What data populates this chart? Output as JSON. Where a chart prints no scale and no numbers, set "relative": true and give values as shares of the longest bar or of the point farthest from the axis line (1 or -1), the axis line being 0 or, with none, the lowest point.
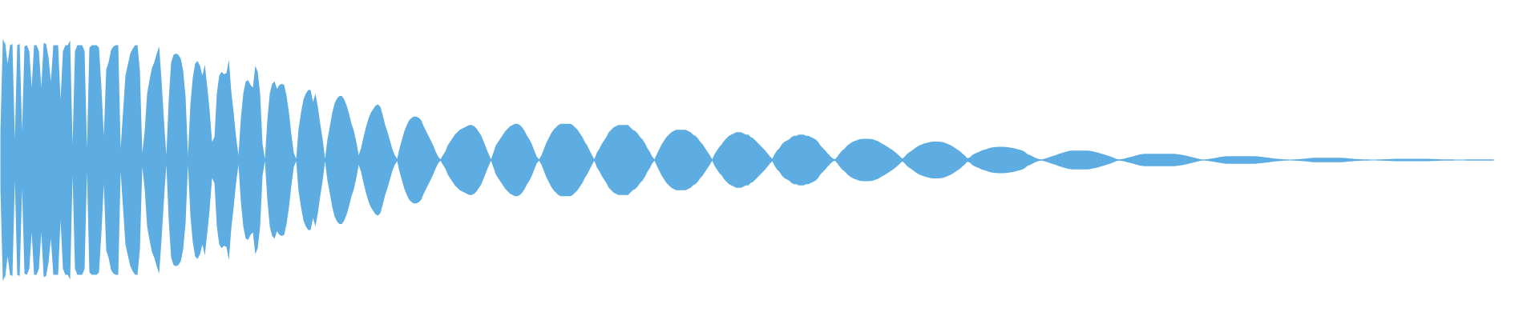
{
  "chart_data": {
    "type": "area",
    "relative": true,
    "categories": [
      null,
      null,
      null,
      null,
      null,
      null,
      null,
      null,
      null,
      null,
      null,
      null,
      null,
      null,
      null,
      null,
      null,
      null,
      null,
      null,
      null,
      null,
      null,
      null,
      null,
      null,
      null,
      null,
      null,
      null,
      null,
      null,
      null,
      null,
      null,
      null,
      null,
      null,
      null,
      null,
      null,
      null,
      null,
      null,
      null,
      null,
      null,
      null,
      null,
      null,
      null,
      null,
      null,
      null,
      null,
      null,
      null,
      null,
      null,
      null,
      null,
      null,
      null,
      null,
      null,
      null,
      null,
      null,
      null,
      null,
      null,
      null,
      null,
      null,
      null,
      null,
      null,
      null,
      null,
      null,
      null,
      null,
      null,
      null,
      null,
      null,
      null,
      null,
      null,
      null,
      null,
      null,
      null,
      null,
      null,
      null,
      null,
      null,
      null,
      null,
      null,
      null,
      null,
      null,
      null,
      null,
      null,
      null,
      null,
      null,
      null,
      null,
      null,
      null,
      null,
      null,
      null,
      null,
      null,
      null,
      null,
      null,
      null,
      null,
      null,
      null,
      null,
      null,
      null,
      null,
      null,
      null,
      null,
      null,
      null,
      null,
      null,
      null,
      null,
      null,
      null,
      null,
      null,
      null,
      null,
      null,
      null,
      null,
      null,
      null,
      null,
      null,
      null,
      null,
      null,
      null,
      null,
      null,
      null,
      null,
      null,
      null,
      null,
      null,
      null,
      null,
      null,
      null,
      null,
      null,
      null,
      null,
      null,
      null,
      null,
      null,
      null,
      null,
      null,
      null,
      null,
      null,
      null,
      null,
      null,
      null,
      null,
      null,
      null,
      null,
      null,
      null,
      null,
      null,
      null,
      null,
      null,
      null,
      null,
      null,
      null,
      null,
      null,
      null,
      null,
      null,
      null,
      null,
      null,
      null,
      null,
      null,
      null,
      null,
      null,
      null,
      null,
      null,
      null,
      null,
      null,
      null,
      null,
      null,
      null,
      null,
      null,
      null,
      null,
      null,
      null,
      null,
      null,
      null,
      null,
      null,
      null,
      null,
      null,
      null,
      null,
      null,
      null,
      null,
      null,
      null,
      null,
      null,
      null,
      null,
      null,
      null,
      null,
      null,
      null,
      null,
      null,
      null,
      null,
      null,
      null,
      null,
      null,
      null,
      null,
      null,
      null,
      null,
      null,
      null,
      null,
      null,
      null,
      null,
      null,
      null,
      null,
      null,
      null,
      null,
      null,
      null,
      null,
      null,
      null,
      null,
      null,
      null,
      null,
      null,
      null,
      null,
      null,
      null,
      null,
      null,
      null,
      null,
      null,
      null,
      null,
      null,
      null,
      null,
      null,
      null,
      null,
      null,
      null,
      null,
      null,
      null,
      null,
      null,
      null,
      null,
      null,
      null,
      null,
      null,
      null,
      null,
      null,
      null,
      null,
      null,
      null,
      null,
      null,
      null,
      null,
      null,
      null,
      null,
      null,
      null,
      null,
      null,
      null,
      null,
      null,
      null,
      null,
      null,
      null,
      null,
      null,
      null,
      null,
      null,
      null,
      null,
      null,
      null,
      null,
      null,
      null,
      null,
      null,
      null,
      null,
      null,
      null,
      null,
      null,
      null,
      null,
      null,
      null,
      null,
      null,
      null,
      null,
      null,
      null,
      null,
      null,
      null,
      null,
      null,
      null,
      null,
      null,
      null,
      null,
      null,
      null,
      null,
      null,
      null,
      null,
      null,
      null,
      null,
      null,
      null,
      null,
      null,
      null,
      null,
      null,
      null,
      null,
      null,
      null,
      null,
      null,
      null,
      null,
      null,
      null,
      null,
      null,
      null,
      null,
      null,
      null,
      null,
      null,
      null,
      null,
      null,
      null,
      null,
      null,
      null,
      null,
      null,
      null,
      null,
      null,
      null,
      null,
      null,
      null,
      null,
      null,
      null,
      null,
      null,
      null,
      null,
      null,
      null,
      null,
      null,
      null,
      null,
      null,
      null,
      null,
      null,
      null,
      null,
      null,
      null,
      null,
      null,
      null,
      null,
      null,
      null,
      null,
      null,
      null,
      null,
      null,
      null,
      null,
      null,
      null,
      null,
      null,
      null,
      null,
      null,
      null,
      null,
      null,
      null,
      null,
      null,
      null,
      null,
      null,
      null,
      null,
      null,
      null,
      null,
      null,
      null,
      null,
      null,
      null,
      null,
      null,
      null,
      null,
      null,
      null,
      null,
      null,
      null,
      null,
      null,
      null,
      null,
      null,
      null,
      null,
      null,
      null,
      null,
      null,
      null,
      null,
      null,
      null,
      null,
      null,
      null,
      null,
      null,
      null,
      null,
      null,
      null,
      null,
      null,
      null,
      null,
      null,
      null,
      null,
      null,
      null,
      null,
      null,
      null,
      null,
      null,
      null,
      null,
      null,
      null,
      null,
      null,
      null,
      null,
      null,
      null,
      null,
      null,
      null,
      null,
      null,
      null,
      null,
      null,
      null,
      null,
      null,
      null,
      null,
      null,
      null,
      null,
      null,
      null,
      null,
      null,
      null,
      null,
      null,
      null,
      null,
      null,
      null,
      null,
      null,
      null,
      null,
      null,
      null,
      null,
      null,
      null,
      null,
      null,
      null,
      null,
      null,
      null,
      null,
      null,
      null,
      null,
      null,
      null,
      null,
      null,
      null,
      null,
      null,
      null,
      null,
      null,
      null,
      null,
      null,
      null,
      null,
      null,
      null,
      null,
      null,
      null,
      null,
      null,
      null,
      null
    ],
    "ref_lines": [
      {
        "axis": "y",
        "value": 0,
        "color": "#5dade2"
      }
    ],
    "series": [
      {
        "color": "#5dade2",
        "values": [
          0.24,
          1.0,
          0.96,
          0.8,
          0.95,
          0.96,
          0.17,
          0.95,
          0.96,
          0.24,
          0.94,
          0.95,
          0.9,
          0.6,
          0.95,
          0.95,
          0.9,
          0.6,
          0.97,
          0.96,
          0.85,
          0.65,
          0.95,
          0.95,
          0.95,
          0.5,
          0.9,
          0.95,
          0.95,
          0.99,
          0.13,
          0.9,
          0.95,
          0.95,
          0.95,
          0.9,
          0.1,
          0.93,
          0.95,
          0.95,
          0.95,
          0.93,
          0.6,
          0.2,
          0.75,
          0.81,
          0.91,
          0.94,
          0.95,
          0.95,
          0.1,
          0.4,
          0.7,
          0.79,
          0.88,
          0.92,
          0.95,
          0.95,
          0.74,
          0.06,
          0.24,
          0.55,
          0.66,
          0.76,
          0.81,
          0.88,
          0.94,
          0.66,
          0.33,
          0.04,
          0.5,
          0.81,
          0.87,
          0.88,
          0.87,
          0.84,
          0.74,
          0.52,
          0.04,
          0.46,
          0.68,
          0.8,
          0.82,
          0.78,
          0.7,
          0.79,
          0.61,
          0.41,
          0.15,
          0.19,
          0.55,
          0.7,
          0.73,
          0.71,
          0.72,
          0.83,
          0.57,
          0.39,
          0.19,
          0.04,
          0.35,
          0.55,
          0.65,
          0.66,
          0.62,
          0.6,
          0.78,
          0.73,
          0.55,
          0.13,
          0.01,
          0.33,
          0.55,
          0.63,
          0.65,
          0.59,
          0.62,
          0.63,
          0.62,
          0.53,
          0.39,
          0.21,
          0.06,
          0.01,
          0.26,
          0.39,
          0.5,
          0.55,
          0.58,
          0.58,
          0.48,
          0.55,
          0.44,
          0.3,
          0.17,
          0.01,
          0.17,
          0.28,
          0.39,
          0.47,
          0.51,
          0.53,
          0.53,
          0.5,
          0.45,
          0.38,
          0.3,
          0.24,
          0.15,
          0.04,
          0.1,
          0.19,
          0.27,
          0.34,
          0.39,
          0.42,
          0.45,
          0.46,
          0.44,
          0.37,
          0.29,
          0.23,
          0.16,
          0.09,
          0.04,
          0.01,
          0.1,
          0.17,
          0.24,
          0.29,
          0.33,
          0.35,
          0.36,
          0.36,
          0.35,
          0.33,
          0.28,
          0.24,
          0.2,
          0.16,
          0.12,
          0.07,
          0.03,
          0.005,
          0.04,
          0.07,
          0.12,
          0.15,
          0.18,
          0.21,
          0.23,
          0.25,
          0.26,
          0.27,
          0.28,
          0.29,
          0.29,
          0.28,
          0.26,
          0.23,
          0.2,
          0.15,
          0.1,
          0.05,
          0.005,
          0.06,
          0.12,
          0.15,
          0.18,
          0.21,
          0.24,
          0.26,
          0.28,
          0.29,
          0.3,
          0.3,
          0.29,
          0.27,
          0.24,
          0.2,
          0.17,
          0.13,
          0.08,
          0.03,
          0.005,
          0.04,
          0.09,
          0.14,
          0.18,
          0.22,
          0.25,
          0.27,
          0.29,
          0.3,
          0.3,
          0.3,
          0.3,
          0.3,
          0.29,
          0.27,
          0.25,
          0.22,
          0.19,
          0.15,
          0.12,
          0.08,
          0.04,
          0.005,
          0.06,
          0.09,
          0.13,
          0.16,
          0.19,
          0.23,
          0.25,
          0.27,
          0.28,
          0.29,
          0.29,
          0.29,
          0.29,
          0.29,
          0.27,
          0.25,
          0.24,
          0.22,
          0.19,
          0.17,
          0.14,
          0.1,
          0.07,
          0.03,
          0.005,
          0.05,
          0.09,
          0.13,
          0.16,
          0.19,
          0.21,
          0.23,
          0.24,
          0.25,
          0.25,
          0.25,
          0.25,
          0.25,
          0.24,
          0.23,
          0.21,
          0.2,
          0.18,
          0.15,
          0.13,
          0.1,
          0.07,
          0.04,
          0.005,
          0.05,
          0.08,
          0.11,
          0.13,
          0.16,
          0.18,
          0.2,
          0.21,
          0.22,
          0.23,
          0.23,
          0.23,
          0.22,
          0.21,
          0.21,
          0.19,
          0.18,
          0.16,
          0.14,
          0.12,
          0.1,
          0.08,
          0.055,
          0.03,
          0.01,
          0.05,
          0.08,
          0.1,
          0.13,
          0.15,
          0.16,
          0.17,
          0.19,
          0.2,
          0.2,
          0.21,
          0.21,
          0.21,
          0.2,
          0.2,
          0.19,
          0.18,
          0.17,
          0.15,
          0.12,
          0.1,
          0.08,
          0.055,
          0.033,
          0.015,
          0.005,
          0.027,
          0.055,
          0.078,
          0.093,
          0.115,
          0.132,
          0.146,
          0.155,
          0.163,
          0.17,
          0.174,
          0.176,
          0.176,
          0.176,
          0.174,
          0.17,
          0.163,
          0.155,
          0.143,
          0.132,
          0.121,
          0.108,
          0.095,
          0.082,
          0.066,
          0.049,
          0.031,
          0.011,
          0.027,
          0.049,
          0.064,
          0.078,
          0.093,
          0.108,
          0.119,
          0.128,
          0.135,
          0.141,
          0.146,
          0.15,
          0.152,
          0.152,
          0.152,
          0.15,
          0.148,
          0.141,
          0.132,
          0.124,
          0.113,
          0.1,
          0.086,
          0.073,
          0.055,
          0.038,
          0.015,
          0.02,
          0.038,
          0.051,
          0.06,
          0.068,
          0.078,
          0.084,
          0.09,
          0.097,
          0.102,
          0.106,
          0.108,
          0.11,
          0.11,
          0.11,
          0.108,
          0.106,
          0.102,
          0.1,
          0.095,
          0.09,
          0.084,
          0.078,
          0.068,
          0.049,
          0.042,
          0.033,
          0.022,
          0.013,
          0.007,
          0.003,
          0.01,
          0.015,
          0.022,
          0.03,
          0.035,
          0.042,
          0.05,
          0.056,
          0.062,
          0.068,
          0.073,
          0.077,
          0.078,
          0.078,
          0.078,
          0.078,
          0.078,
          0.078,
          0.078,
          0.076,
          0.072,
          0.068,
          0.063,
          0.058,
          0.052,
          0.046,
          0.04,
          0.033,
          0.026,
          0.018,
          0.01,
          0.003,
          0.006,
          0.01,
          0.015,
          0.02,
          0.025,
          0.03,
          0.036,
          0.041,
          0.046,
          0.05,
          0.052,
          0.052,
          0.052,
          0.052,
          0.052,
          0.052,
          0.052,
          0.052,
          0.052,
          0.052,
          0.052,
          0.052,
          0.052,
          0.05,
          0.047,
          0.044,
          0.04,
          0.036,
          0.031,
          0.026,
          0.021,
          0.016,
          0.011,
          0.006,
          0.002,
          0.004,
          0.007,
          0.01,
          0.013,
          0.017,
          0.02,
          0.024,
          0.027,
          0.03,
          0.031,
          0.031,
          0.031,
          0.031,
          0.031,
          0.031,
          0.031,
          0.031,
          0.031,
          0.031,
          0.031,
          0.031,
          0.031,
          0.029,
          0.027,
          0.025,
          0.022,
          0.02,
          0.017,
          0.015,
          0.012,
          0.01,
          0.008,
          0.006,
          0.004,
          0.003,
          0,
          0.002,
          0.004,
          0.005,
          0.006,
          0.008,
          0.01,
          0.012,
          0.014,
          0.016,
          0.018,
          0.018,
          0.018,
          0.018,
          0.018,
          0.018,
          0.018,
          0.018,
          0.018,
          0.018,
          0.018,
          0.018,
          0.018,
          0.016,
          0.014,
          0.012,
          0.011,
          0.009,
          0.008,
          0.006,
          0.005,
          0.004,
          0.003,
          0.003,
          0,
          0,
          0,
          0.003,
          0.004,
          0.005,
          0.006,
          0.007,
          0.008,
          0.009,
          0.01,
          0.01,
          0.01,
          0.01,
          0.01,
          0.01,
          0.01,
          0.01,
          0.01,
          0.01,
          0.01,
          0.01,
          0.01,
          0.01,
          0.01,
          0.009,
          0.008,
          0.007,
          0.006,
          0.005,
          0.004,
          0.004,
          0.003,
          0.003,
          0.003,
          0,
          0,
          0,
          0,
          0,
          0.004,
          0.004,
          0.004,
          0.004,
          0.004,
          0.004,
          0.004,
          0.004,
          0.004,
          0.004,
          0.004,
          0.004
        ]
      },
      {
        "color": "#5dade2",
        "values": [
          -0.24,
          -1.0,
          -0.96,
          -0.8,
          -0.95,
          -0.96,
          -0.17,
          -0.95,
          -0.96,
          -0.24,
          -0.94,
          -0.95,
          -0.9,
          -0.6,
          -0.95,
          -0.95,
          -0.9,
          -0.6,
          -0.97,
          -0.96,
          -0.85,
          -0.65,
          -0.95,
          -0.95,
          -0.95,
          -0.5,
          -0.9,
          -0.95,
          -0.95,
          -0.99,
          -0.13,
          -0.9,
          -0.95,
          -0.95,
          -0.95,
          -0.9,
          -0.1,
          -0.93,
          -0.95,
          -0.95,
          -0.95,
          -0.93,
          -0.6,
          -0.2,
          -0.75,
          -0.81,
          -0.91,
          -0.94,
          -0.95,
          -0.95,
          -0.1,
          -0.4,
          -0.7,
          -0.79,
          -0.88,
          -0.92,
          -0.95,
          -0.95,
          -0.74,
          -0.06,
          -0.24,
          -0.55,
          -0.66,
          -0.76,
          -0.81,
          -0.88,
          -0.94,
          -0.66,
          -0.33,
          -0.04,
          -0.5,
          -0.81,
          -0.87,
          -0.88,
          -0.87,
          -0.84,
          -0.74,
          -0.52,
          -0.04,
          -0.46,
          -0.68,
          -0.8,
          -0.82,
          -0.78,
          -0.7,
          -0.79,
          -0.61,
          -0.41,
          -0.15,
          -0.19,
          -0.55,
          -0.7,
          -0.73,
          -0.71,
          -0.72,
          -0.83,
          -0.57,
          -0.39,
          -0.19,
          -0.04,
          -0.35,
          -0.55,
          -0.65,
          -0.66,
          -0.62,
          -0.6,
          -0.78,
          -0.73,
          -0.55,
          -0.13,
          -0.01,
          -0.33,
          -0.55,
          -0.63,
          -0.65,
          -0.59,
          -0.62,
          -0.63,
          -0.62,
          -0.53,
          -0.39,
          -0.21,
          -0.06,
          -0.01,
          -0.26,
          -0.39,
          -0.5,
          -0.55,
          -0.58,
          -0.58,
          -0.48,
          -0.55,
          -0.44,
          -0.3,
          -0.17,
          -0.01,
          -0.17,
          -0.28,
          -0.39,
          -0.47,
          -0.51,
          -0.53,
          -0.53,
          -0.5,
          -0.45,
          -0.38,
          -0.3,
          -0.24,
          -0.15,
          -0.04,
          -0.1,
          -0.19,
          -0.27,
          -0.34,
          -0.39,
          -0.42,
          -0.45,
          -0.46,
          -0.44,
          -0.37,
          -0.29,
          -0.23,
          -0.16,
          -0.09,
          -0.04,
          -0.01,
          -0.1,
          -0.17,
          -0.24,
          -0.29,
          -0.33,
          -0.35,
          -0.36,
          -0.36,
          -0.35,
          -0.33,
          -0.28,
          -0.24,
          -0.2,
          -0.16,
          -0.12,
          -0.07,
          -0.03,
          -0.005,
          -0.04,
          -0.07,
          -0.12,
          -0.15,
          -0.18,
          -0.21,
          -0.23,
          -0.25,
          -0.26,
          -0.27,
          -0.28,
          -0.29,
          -0.29,
          -0.28,
          -0.26,
          -0.23,
          -0.2,
          -0.15,
          -0.1,
          -0.05,
          -0.005,
          -0.06,
          -0.12,
          -0.15,
          -0.18,
          -0.21,
          -0.24,
          -0.26,
          -0.28,
          -0.29,
          -0.3,
          -0.3,
          -0.29,
          -0.27,
          -0.24,
          -0.2,
          -0.17,
          -0.13,
          -0.08,
          -0.03,
          -0.005,
          -0.04,
          -0.09,
          -0.14,
          -0.18,
          -0.22,
          -0.25,
          -0.27,
          -0.29,
          -0.3,
          -0.3,
          -0.3,
          -0.3,
          -0.3,
          -0.29,
          -0.27,
          -0.25,
          -0.22,
          -0.19,
          -0.15,
          -0.12,
          -0.08,
          -0.04,
          -0.005,
          -0.06,
          -0.09,
          -0.13,
          -0.16,
          -0.19,
          -0.23,
          -0.25,
          -0.27,
          -0.28,
          -0.29,
          -0.29,
          -0.29,
          -0.29,
          -0.29,
          -0.27,
          -0.25,
          -0.24,
          -0.22,
          -0.19,
          -0.17,
          -0.14,
          -0.1,
          -0.07,
          -0.03,
          -0.005,
          -0.05,
          -0.09,
          -0.13,
          -0.16,
          -0.19,
          -0.21,
          -0.23,
          -0.24,
          -0.25,
          -0.25,
          -0.25,
          -0.25,
          -0.25,
          -0.24,
          -0.23,
          -0.21,
          -0.2,
          -0.18,
          -0.15,
          -0.13,
          -0.1,
          -0.07,
          -0.04,
          -0.005,
          -0.05,
          -0.08,
          -0.11,
          -0.13,
          -0.16,
          -0.18,
          -0.2,
          -0.21,
          -0.22,
          -0.23,
          -0.23,
          -0.23,
          -0.22,
          -0.21,
          -0.21,
          -0.19,
          -0.18,
          -0.16,
          -0.14,
          -0.12,
          -0.1,
          -0.08,
          -0.055,
          -0.03,
          -0.01,
          -0.05,
          -0.08,
          -0.1,
          -0.13,
          -0.15,
          -0.16,
          -0.17,
          -0.19,
          -0.2,
          -0.2,
          -0.21,
          -0.21,
          -0.21,
          -0.2,
          -0.2,
          -0.19,
          -0.18,
          -0.17,
          -0.15,
          -0.12,
          -0.1,
          -0.08,
          -0.055,
          -0.033,
          -0.015,
          -0.005,
          -0.027,
          -0.055,
          -0.078,
          -0.093,
          -0.115,
          -0.132,
          -0.146,
          -0.155,
          -0.163,
          -0.17,
          -0.174,
          -0.176,
          -0.176,
          -0.176,
          -0.174,
          -0.17,
          -0.163,
          -0.155,
          -0.143,
          -0.132,
          -0.121,
          -0.108,
          -0.095,
          -0.082,
          -0.066,
          -0.049,
          -0.031,
          -0.011,
          -0.027,
          -0.049,
          -0.064,
          -0.078,
          -0.093,
          -0.108,
          -0.119,
          -0.128,
          -0.135,
          -0.141,
          -0.146,
          -0.15,
          -0.152,
          -0.152,
          -0.152,
          -0.15,
          -0.148,
          -0.141,
          -0.132,
          -0.124,
          -0.113,
          -0.1,
          -0.086,
          -0.073,
          -0.055,
          -0.038,
          -0.015,
          -0.02,
          -0.038,
          -0.051,
          -0.06,
          -0.068,
          -0.078,
          -0.084,
          -0.09,
          -0.097,
          -0.102,
          -0.106,
          -0.108,
          -0.11,
          -0.11,
          -0.11,
          -0.108,
          -0.106,
          -0.102,
          -0.1,
          -0.095,
          -0.09,
          -0.084,
          -0.078,
          -0.068,
          -0.049,
          -0.042,
          -0.033,
          -0.022,
          -0.013,
          -0.007,
          -0.003,
          -0.01,
          -0.015,
          -0.022,
          -0.03,
          -0.035,
          -0.042,
          -0.05,
          -0.056,
          -0.062,
          -0.068,
          -0.073,
          -0.077,
          -0.078,
          -0.078,
          -0.078,
          -0.078,
          -0.078,
          -0.078,
          -0.078,
          -0.076,
          -0.072,
          -0.068,
          -0.063,
          -0.058,
          -0.052,
          -0.046,
          -0.04,
          -0.033,
          -0.026,
          -0.018,
          -0.01,
          -0.003,
          -0.006,
          -0.01,
          -0.015,
          -0.02,
          -0.025,
          -0.03,
          -0.036,
          -0.041,
          -0.046,
          -0.05,
          -0.052,
          -0.052,
          -0.052,
          -0.052,
          -0.052,
          -0.052,
          -0.052,
          -0.052,
          -0.052,
          -0.052,
          -0.052,
          -0.052,
          -0.052,
          -0.05,
          -0.047,
          -0.044,
          -0.04,
          -0.036,
          -0.031,
          -0.026,
          -0.021,
          -0.016,
          -0.011,
          -0.006,
          -0.002,
          -0.004,
          -0.007,
          -0.01,
          -0.013,
          -0.017,
          -0.02,
          -0.024,
          -0.027,
          -0.03,
          -0.031,
          -0.031,
          -0.031,
          -0.031,
          -0.031,
          -0.031,
          -0.031,
          -0.031,
          -0.031,
          -0.031,
          -0.031,
          -0.031,
          -0.031,
          -0.029,
          -0.027,
          -0.025,
          -0.022,
          -0.02,
          -0.017,
          -0.015,
          -0.012,
          -0.01,
          -0.008,
          -0.006,
          -0.004,
          -0.003,
          0,
          -0.002,
          -0.004,
          -0.005,
          -0.006,
          -0.008,
          -0.01,
          -0.012,
          -0.014,
          -0.016,
          -0.018,
          -0.018,
          -0.018,
          -0.018,
          -0.018,
          -0.018,
          -0.018,
          -0.018,
          -0.018,
          -0.018,
          -0.018,
          -0.018,
          -0.018,
          -0.016,
          -0.014,
          -0.012,
          -0.011,
          -0.009,
          -0.008,
          -0.006,
          -0.005,
          -0.004,
          -0.003,
          -0.003,
          0,
          0,
          0,
          -0.003,
          -0.004,
          -0.005,
          -0.006,
          -0.007,
          -0.008,
          -0.009,
          -0.01,
          -0.01,
          -0.01,
          -0.01,
          -0.01,
          -0.01,
          -0.01,
          -0.01,
          -0.01,
          -0.01,
          -0.01,
          -0.01,
          -0.01,
          -0.01,
          -0.01,
          -0.009,
          -0.008,
          -0.007,
          -0.006,
          -0.005,
          -0.004,
          -0.004,
          -0.003,
          -0.003,
          -0.003,
          0,
          0,
          0,
          0,
          0,
          -0.004,
          -0.004,
          -0.004,
          -0.004,
          -0.004,
          -0.004,
          -0.004,
          -0.004,
          -0.004,
          -0.004,
          -0.004,
          -0.004
        ]
      }
    ]
  }
}
